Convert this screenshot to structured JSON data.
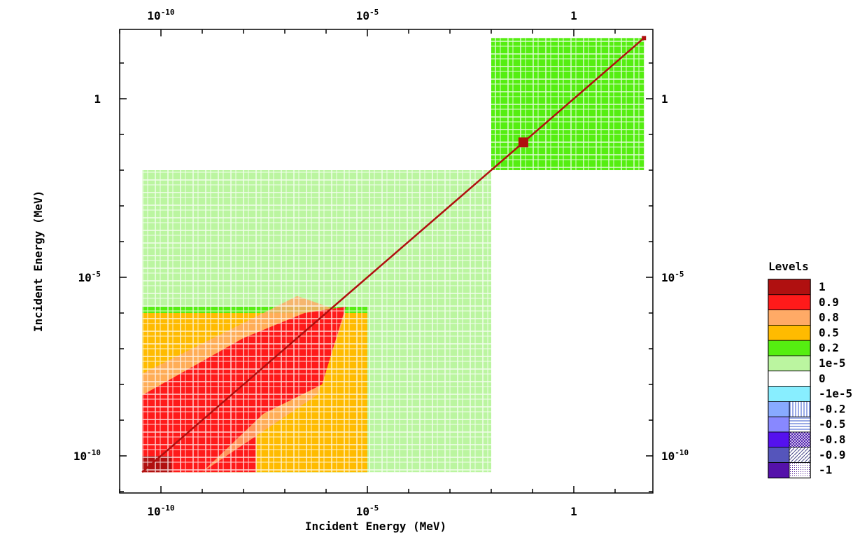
{
  "chart_data": {
    "type": "heatmap",
    "xlabel": "Incident Energy (MeV)",
    "ylabel": "Incident Energy (MeV)",
    "x_scale": "log",
    "y_scale": "log",
    "xlim": [
      1e-11,
      100
    ],
    "ylim": [
      1e-11,
      100
    ],
    "xticks": [
      {
        "base": "10",
        "exp": "-10",
        "value": 1e-10
      },
      {
        "base": "10",
        "exp": "-5",
        "value": 1e-05
      },
      {
        "base": "1",
        "exp": "",
        "value": 1
      }
    ],
    "yticks": [
      {
        "base": "1",
        "exp": "",
        "value": 1
      },
      {
        "base": "10",
        "exp": "-5",
        "value": 1e-05
      },
      {
        "base": "10",
        "exp": "-10",
        "value": 1e-10
      }
    ],
    "legend": {
      "title": "Levels",
      "position": "right",
      "items": [
        {
          "label": "1",
          "color": "#b01010",
          "pattern": false
        },
        {
          "label": "0.9",
          "color": "#ff1a1a",
          "pattern": false
        },
        {
          "label": "0.8",
          "color": "#ffaa66",
          "pattern": false
        },
        {
          "label": "0.5",
          "color": "#ffbb00",
          "pattern": false
        },
        {
          "label": "0.2",
          "color": "#55ee11",
          "pattern": false
        },
        {
          "label": "1e-5",
          "color": "#bbf5a0",
          "pattern": false
        },
        {
          "label": "0",
          "color": "#ffffff",
          "pattern": false
        },
        {
          "label": "-1e-5",
          "color": "#88eeff",
          "pattern": false
        },
        {
          "label": "-0.2",
          "color": "#88aaff",
          "pattern": "vertical"
        },
        {
          "label": "-0.5",
          "color": "#8888ff",
          "pattern": "horizontal"
        },
        {
          "label": "-0.8",
          "color": "#5511ee",
          "pattern": "crosshatch"
        },
        {
          "label": "-0.9",
          "color": "#5555bb",
          "pattern": "diagonal"
        },
        {
          "label": "-1",
          "color": "#5511aa",
          "pattern": "dots"
        }
      ]
    },
    "regions": [
      {
        "x": [
          3.5e-11,
          0.01
        ],
        "y": [
          3.5e-11,
          0.01
        ],
        "level": "1e-5"
      },
      {
        "x": [
          3.5e-11,
          1e-05
        ],
        "y": [
          3.5e-11,
          1.5e-06
        ],
        "level": "0.2"
      },
      {
        "x": [
          3.5e-11,
          1e-05
        ],
        "y": [
          3.5e-11,
          1e-06
        ],
        "level": "0.5"
      },
      {
        "x": [
          3.5e-11,
          2e-08
        ],
        "y": [
          3.5e-11,
          5e-09
        ],
        "level": "0.9"
      },
      {
        "x": [
          3.5e-11,
          1.8e-10
        ],
        "y": [
          3.5e-11,
          1e-10
        ],
        "level": "1"
      },
      {
        "x": [
          0.01,
          50
        ],
        "y": [
          0.01,
          50
        ],
        "level": "0.2"
      }
    ],
    "diagonal_level": "1",
    "grid": false
  }
}
